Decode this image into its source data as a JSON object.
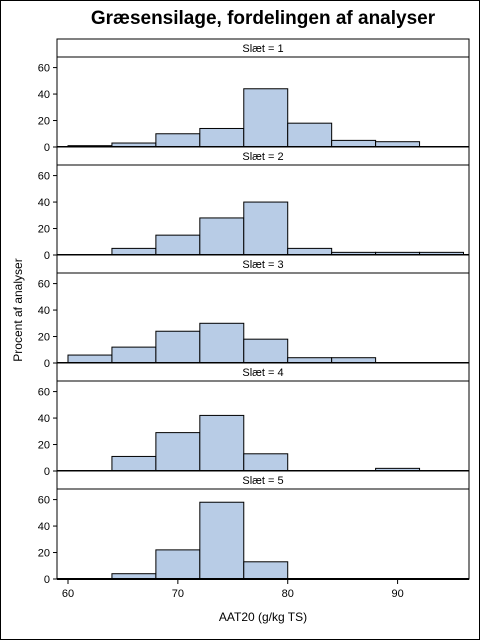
{
  "colors": {
    "bar_fill": "#b8cce6",
    "bar_stroke": "#000000",
    "background": "#ffffff"
  },
  "chart_data": {
    "type": "bar",
    "title": "Græsensilage, fordelingen af analyser",
    "xlabel": "AAT20 (g/kg TS)",
    "ylabel": "Procent af analyser",
    "xlim": [
      59,
      96.5
    ],
    "ylim": [
      0,
      68
    ],
    "xticks": [
      60,
      70,
      80,
      90
    ],
    "yticks": [
      0,
      20,
      40,
      60
    ],
    "bin_edges": [
      60,
      64,
      68,
      72,
      76,
      80,
      84,
      88,
      92,
      96
    ],
    "grid": false,
    "panels": [
      {
        "label": "Slæt = 1",
        "values": [
          1,
          3,
          10,
          14,
          44,
          18,
          5,
          4,
          0
        ]
      },
      {
        "label": "Slæt = 2",
        "values": [
          0,
          5,
          15,
          28,
          40,
          5,
          2,
          2,
          2
        ]
      },
      {
        "label": "Slæt = 3",
        "values": [
          6,
          12,
          24,
          30,
          18,
          4,
          4,
          0,
          0
        ]
      },
      {
        "label": "Slæt = 4",
        "values": [
          0,
          11,
          29,
          42,
          13,
          0,
          0,
          2,
          0
        ]
      },
      {
        "label": "Slæt = 5",
        "values": [
          0,
          4,
          22,
          58,
          13,
          0,
          0,
          0,
          0
        ]
      }
    ]
  }
}
